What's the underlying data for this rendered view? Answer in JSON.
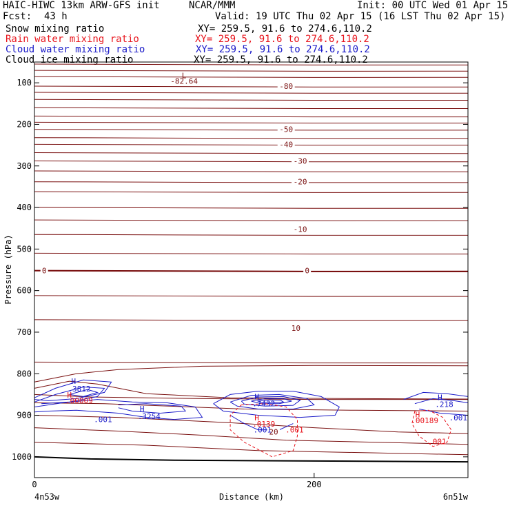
{
  "header": {
    "model": "HAIC-HIWC 13km ARW-GFS init",
    "org": "NCAR/MMM",
    "init": "Init: 00 UTC Wed 01 Apr 15",
    "fcst_label": "Fcst:",
    "fcst_value": "43 h",
    "valid": "Valid: 19 UTC Thu 02 Apr 15 (16 LST Thu 02 Apr 15)"
  },
  "legend": [
    {
      "name": "Snow mixing ratio",
      "xy": "XY= 259.5, 91.6 to 274.6,110.2",
      "color": "#000000"
    },
    {
      "name": "Rain water mixing ratio",
      "xy": "XY= 259.5, 91.6 to 274.6,110.2",
      "color": "#e8141c"
    },
    {
      "name": "Cloud water mixing ratio",
      "xy": "XY= 259.5, 91.6 to 274.6,110.2",
      "color": "#1a1ac8"
    },
    {
      "name": "Cloud ice mixing ratio",
      "xy": "XY= 259.5, 91.6 to 274.6,110.2",
      "color": "#000000"
    }
  ],
  "colors": {
    "temperature": "#7a1010",
    "rain": "#e8141c",
    "cloud_water": "#1a1ac8",
    "terrain": "#000000"
  },
  "chart_data": {
    "type": "cross-section contour",
    "xlabel": "Distance (km)",
    "ylabel": "Pressure (hPa)",
    "xlim": [
      0,
      310
    ],
    "ylim": [
      1050,
      50
    ],
    "x_ticks": [
      "0",
      "200"
    ],
    "x_tick_values": [
      0,
      200
    ],
    "y_ticks": [
      "100",
      "200",
      "300",
      "400",
      "500",
      "600",
      "700",
      "800",
      "900",
      "1000"
    ],
    "y_tick_values": [
      100,
      200,
      300,
      400,
      500,
      600,
      700,
      800,
      900,
      1000
    ],
    "endpoint_left": "4n53w",
    "endpoint_right": "6n51w",
    "temperature_isotherm_pressures": [
      55,
      70,
      85,
      108,
      123,
      140,
      160,
      180,
      195,
      212,
      232,
      248,
      268,
      288,
      312,
      338,
      362,
      400,
      430,
      465,
      510,
      552,
      612,
      670,
      772
    ],
    "temperature_labels": [
      {
        "text": "-80",
        "x": 180,
        "p": 108
      },
      {
        "text": "-50",
        "x": 180,
        "p": 212
      },
      {
        "text": "-40",
        "x": 180,
        "p": 248
      },
      {
        "text": "-30",
        "x": 190,
        "p": 288
      },
      {
        "text": "-20",
        "x": 190,
        "p": 338
      },
      {
        "text": "-10",
        "x": 190,
        "p": 452
      },
      {
        "text": "0",
        "x": 7,
        "p": 552
      },
      {
        "text": "0",
        "x": 195,
        "p": 552
      },
      {
        "text": "10",
        "x": 187,
        "p": 690
      },
      {
        "text": "20",
        "x": 171,
        "p": 940
      }
    ],
    "extrema_labels": [
      {
        "text": "L",
        "x": 107,
        "p": 82,
        "color": "temperature"
      },
      {
        "text": "-82.64",
        "x": 107,
        "p": 96,
        "color": "temperature"
      },
      {
        "text": "H",
        "x": 28,
        "p": 818,
        "color": "cloud_water"
      },
      {
        "text": ".3812",
        "x": 32,
        "p": 836,
        "color": "cloud_water"
      },
      {
        "text": "H",
        "x": 25,
        "p": 851,
        "color": "rain"
      },
      {
        "text": ".00009",
        "x": 32,
        "p": 864,
        "color": "rain"
      },
      {
        "text": "H",
        "x": 77,
        "p": 884,
        "color": "cloud_water"
      },
      {
        "text": ".3254",
        "x": 82,
        "p": 902,
        "color": "cloud_water"
      },
      {
        "text": ".001",
        "x": 49,
        "p": 910,
        "color": "cloud_water"
      },
      {
        "text": "H",
        "x": 159,
        "p": 855,
        "color": "cloud_water"
      },
      {
        "text": ".7432",
        "x": 164,
        "p": 872,
        "color": "cloud_water"
      },
      {
        "text": "H",
        "x": 159,
        "p": 906,
        "color": "rain"
      },
      {
        "text": ".0139",
        "x": 164,
        "p": 921,
        "color": "rain"
      },
      {
        "text": ".001",
        "x": 163,
        "p": 935,
        "color": "cloud_water"
      },
      {
        "text": ".001",
        "x": 186,
        "p": 935,
        "color": "rain"
      },
      {
        "text": "H",
        "x": 290,
        "p": 857,
        "color": "cloud_water"
      },
      {
        "text": ".218",
        "x": 293,
        "p": 873,
        "color": "cloud_water"
      },
      {
        "text": "H",
        "x": 274,
        "p": 898,
        "color": "rain"
      },
      {
        "text": ".00189",
        "x": 279,
        "p": 912,
        "color": "rain"
      },
      {
        "text": ".001",
        "x": 303,
        "p": 906,
        "color": "cloud_water"
      },
      {
        "text": ".001",
        "x": 288,
        "p": 963,
        "color": "rain"
      }
    ],
    "terrain_pressure": [
      [
        0,
        1000
      ],
      [
        40,
        1005
      ],
      [
        100,
        1008
      ],
      [
        200,
        1010
      ],
      [
        310,
        1012
      ]
    ]
  }
}
